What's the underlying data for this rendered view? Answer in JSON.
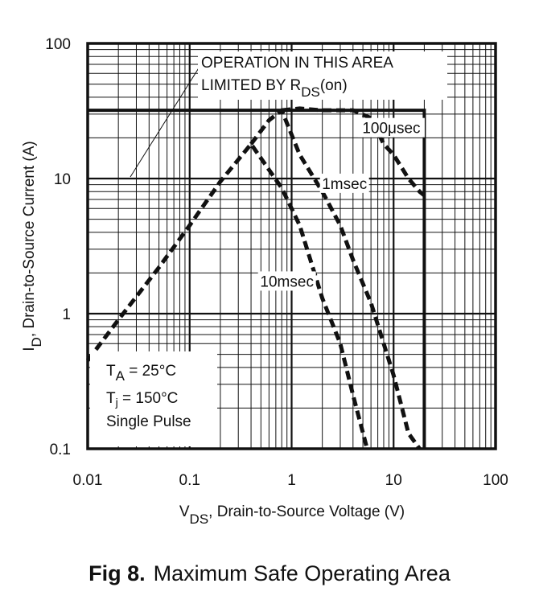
{
  "chart_data": {
    "type": "line",
    "xscale": "log",
    "yscale": "log",
    "xlim": [
      0.01,
      100
    ],
    "ylim": [
      0.1,
      100
    ],
    "grid": true,
    "xlabel": {
      "main": "V",
      "sub": "DS",
      "rest": ", Drain-to-Source Voltage (V)"
    },
    "ylabel": {
      "main": "I",
      "sub": "D",
      "rest": ",  Drain-to-Source Current (A)"
    },
    "xticks": [
      {
        "value": 0.01,
        "label": "0.01"
      },
      {
        "value": 0.1,
        "label": "0.1"
      },
      {
        "value": 1,
        "label": "1"
      },
      {
        "value": 10,
        "label": "10"
      },
      {
        "value": 100,
        "label": "100"
      }
    ],
    "yticks": [
      {
        "value": 0.1,
        "label": "0.1"
      },
      {
        "value": 1,
        "label": "1"
      },
      {
        "value": 10,
        "label": "10"
      },
      {
        "value": 100,
        "label": "100"
      }
    ],
    "boundary": {
      "x": [
        0.01,
        20,
        20
      ],
      "y": [
        32,
        32,
        0.1
      ]
    },
    "series": [
      {
        "name": "10msec",
        "style": "dashed",
        "x": [
          0.01,
          0.02,
          0.05,
          0.1,
          0.2,
          0.4,
          0.8,
          1.2,
          2,
          3,
          4,
          5.5
        ],
        "y": [
          0.45,
          0.9,
          2.2,
          4.5,
          9.5,
          18,
          8.5,
          4.5,
          1.3,
          0.6,
          0.25,
          0.1
        ]
      },
      {
        "name": "1msec",
        "style": "dashed",
        "x": [
          0.4,
          0.6,
          0.8,
          1.2,
          2,
          3,
          4,
          6,
          8,
          10,
          14,
          18
        ],
        "y": [
          18,
          27,
          32,
          15,
          8,
          4.5,
          2.5,
          1.2,
          0.6,
          0.35,
          0.13,
          0.1
        ]
      },
      {
        "name": "100μsec",
        "style": "dashed",
        "x": [
          0.8,
          1.2,
          2,
          4,
          6,
          8,
          10,
          14,
          18,
          20
        ],
        "y": [
          32,
          33,
          32,
          32,
          28,
          18,
          15,
          10,
          8,
          7.5
        ]
      }
    ],
    "series_labels": [
      {
        "text": "10msec",
        "x": 0.9,
        "y": 1.72
      },
      {
        "text": "1msec",
        "x": 3.3,
        "y": 9.1
      },
      {
        "text": "100μsec",
        "x": 9.5,
        "y": 23.5
      }
    ],
    "annotations": {
      "limit_line1": "OPERATION IN THIS AREA",
      "limit_line2_prefix": "LIMITED BY R",
      "limit_line2_sub": "DS",
      "limit_line2_suffix": "(on)",
      "cond_ta_main": "T",
      "cond_ta_sub": "A",
      "cond_ta_rest": " = 25°C",
      "cond_tj_main": "T",
      "cond_tj_sub": "j",
      "cond_tj_rest": " = 150°C",
      "cond_pulse": "Single Pulse"
    }
  },
  "caption": {
    "fig": "Fig 8.",
    "text": "Maximum Safe Operating Area"
  }
}
